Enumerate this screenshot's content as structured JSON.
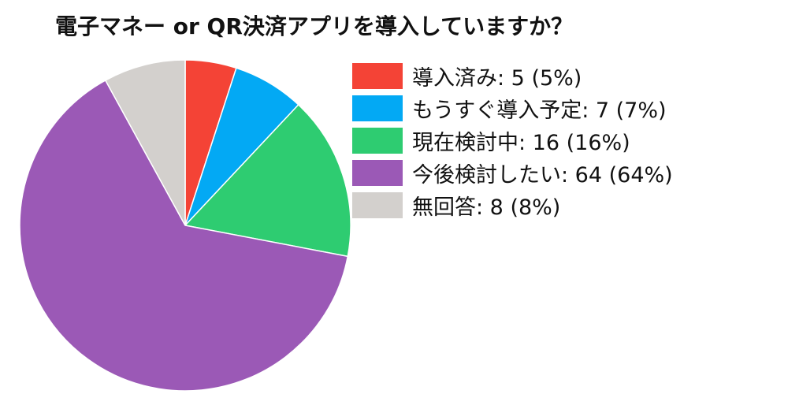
{
  "title": "電子マネー or QR決済アプリを導入していますか？",
  "chart_data": {
    "type": "pie",
    "title": "電子マネー or QR決済アプリを導入していますか？",
    "start": "12 o'clock",
    "direction": "clockwise",
    "legend_position": "right",
    "slices": [
      {
        "label": "導入済み",
        "value": 5,
        "percent": "5%",
        "color": "#f44336",
        "legend_text": "導入済み: 5 (5%)"
      },
      {
        "label": "もうすぐ導入予定",
        "value": 7,
        "percent": "7%",
        "color": "#03a9f4",
        "legend_text": "もうすぐ導入予定: 7 (7%)"
      },
      {
        "label": "現在検討中",
        "value": 16,
        "percent": "16%",
        "color": "#2ecc71",
        "legend_text": "現在検討中: 16 (16%)"
      },
      {
        "label": "今後検討したい",
        "value": 64,
        "percent": "64%",
        "color": "#9b59b6",
        "legend_text": "今後検討したい: 64 (64%)"
      },
      {
        "label": "無回答",
        "value": 8,
        "percent": "8%",
        "color": "#d3d0cd",
        "legend_text": "無回答: 8 (8%)"
      }
    ]
  }
}
